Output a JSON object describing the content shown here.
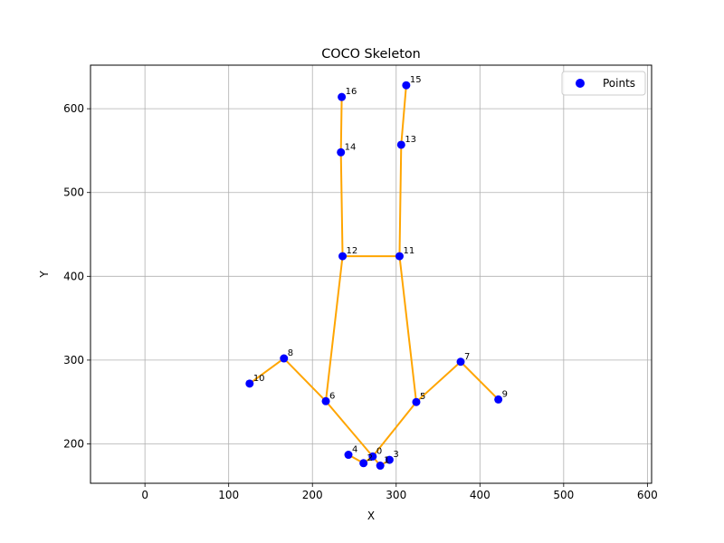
{
  "chart_data": {
    "type": "scatter",
    "title": "COCO Skeleton",
    "xlabel": "X",
    "ylabel": "Y",
    "xlim": [
      -65,
      605
    ],
    "ylim": [
      153,
      652
    ],
    "xticks": [
      0,
      100,
      200,
      300,
      400,
      500,
      600
    ],
    "yticks": [
      200,
      300,
      400,
      500,
      600
    ],
    "grid": true,
    "legend": {
      "entries": [
        "Points"
      ],
      "placement": "top-right"
    },
    "colors": {
      "points": "#0000ff",
      "skeleton": "#ffa500",
      "grid": "#b0b0b0"
    },
    "points": [
      {
        "id": "0",
        "x": 272,
        "y": 185
      },
      {
        "id": "1",
        "x": 281,
        "y": 174
      },
      {
        "id": "2",
        "x": 261,
        "y": 177
      },
      {
        "id": "3",
        "x": 292,
        "y": 181
      },
      {
        "id": "4",
        "x": 243,
        "y": 187
      },
      {
        "id": "5",
        "x": 324,
        "y": 250
      },
      {
        "id": "6",
        "x": 216,
        "y": 251
      },
      {
        "id": "7",
        "x": 377,
        "y": 298
      },
      {
        "id": "8",
        "x": 166,
        "y": 302
      },
      {
        "id": "9",
        "x": 422,
        "y": 253
      },
      {
        "id": "10",
        "x": 125,
        "y": 272
      },
      {
        "id": "11",
        "x": 304,
        "y": 424
      },
      {
        "id": "12",
        "x": 236,
        "y": 424
      },
      {
        "id": "13",
        "x": 306,
        "y": 557
      },
      {
        "id": "14",
        "x": 234,
        "y": 548
      },
      {
        "id": "15",
        "x": 312,
        "y": 628
      },
      {
        "id": "16",
        "x": 235,
        "y": 614
      }
    ],
    "edges": [
      [
        15,
        13
      ],
      [
        13,
        11
      ],
      [
        16,
        14
      ],
      [
        14,
        12
      ],
      [
        11,
        12
      ],
      [
        5,
        11
      ],
      [
        6,
        12
      ],
      [
        5,
        7
      ],
      [
        6,
        8
      ],
      [
        7,
        9
      ],
      [
        8,
        10
      ],
      [
        0,
        1
      ],
      [
        0,
        2
      ],
      [
        1,
        3
      ],
      [
        2,
        4
      ],
      [
        0,
        5
      ],
      [
        0,
        6
      ]
    ]
  }
}
